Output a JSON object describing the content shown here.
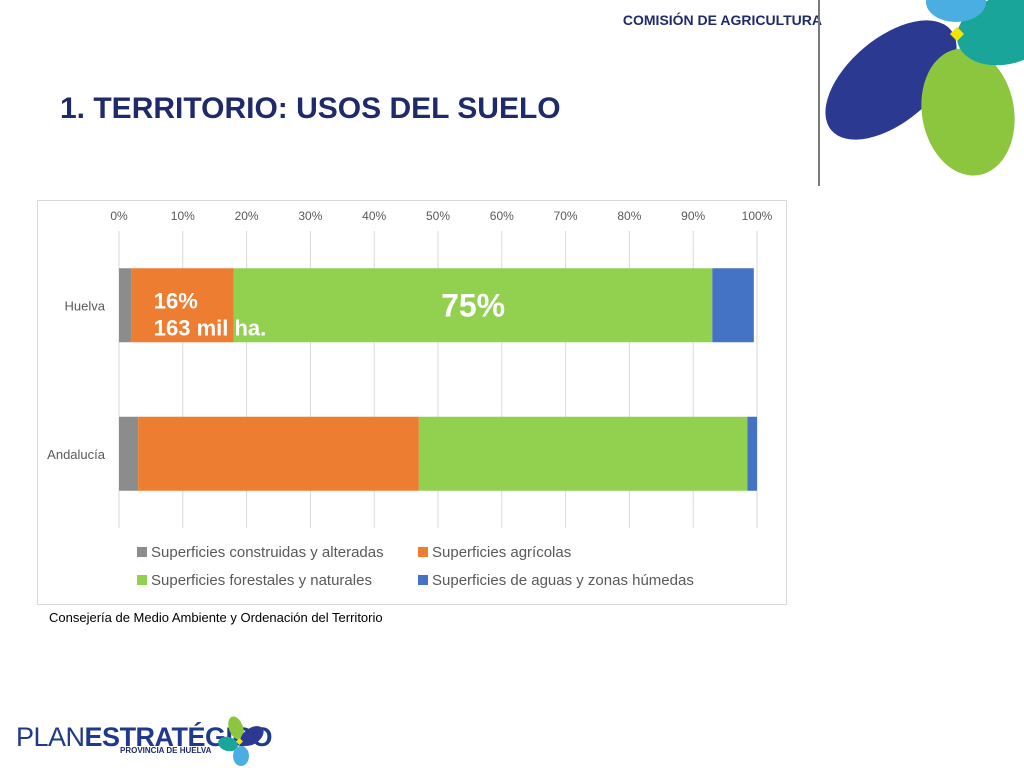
{
  "header": {
    "commission": "COMISIÓN DE AGRICULTURA"
  },
  "page": {
    "title": "1. TERRITORIO: USOS DEL SUELO"
  },
  "chart_data": {
    "type": "bar",
    "orientation": "horizontal",
    "stacked": "percent",
    "categories": [
      "Huelva",
      "Andalucía"
    ],
    "xlim": [
      0,
      100
    ],
    "x_ticks": [
      "0%",
      "10%",
      "20%",
      "30%",
      "40%",
      "50%",
      "60%",
      "70%",
      "80%",
      "90%",
      "100%"
    ],
    "grid": true,
    "legend_position": "bottom",
    "series": [
      {
        "name": "Superficies construidas y alteradas",
        "color": "#8c8c8c",
        "values": [
          2,
          3
        ]
      },
      {
        "name": "Superficies agrícolas",
        "color": "#ed7d31",
        "values": [
          16,
          44
        ]
      },
      {
        "name": "Superficies forestales y naturales",
        "color": "#92d050",
        "values": [
          75,
          51.5
        ]
      },
      {
        "name": "Superficies de aguas y zonas húmedas",
        "color": "#4472c4",
        "values": [
          6.5,
          1.5
        ]
      }
    ],
    "annotations": [
      {
        "category": "Huelva",
        "series": "Superficies agrícolas",
        "lines": [
          "16%",
          "163 mil ha."
        ]
      },
      {
        "category": "Huelva",
        "series": "Superficies forestales y naturales",
        "lines": [
          "75%"
        ]
      }
    ]
  },
  "source": "Consejería de Medio Ambiente y Ordenación del Territorio",
  "footer": {
    "brand_light": "PLAN",
    "brand_bold": "ESTRATÉGICO",
    "subtitle": "PROVINCIA DE HUELVA"
  },
  "logo_colors": {
    "navy": "#2b3990",
    "green": "#8cc63f",
    "teal": "#1aa59a",
    "sky": "#4aaee3",
    "yellow": "#f2e600"
  }
}
